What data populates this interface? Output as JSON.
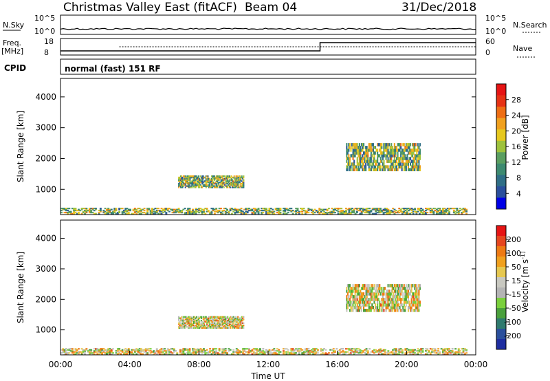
{
  "header": {
    "title": "Christmas Valley East (fitACF)",
    "beam": "Beam 04",
    "date": "31/Dec/2018"
  },
  "top_panels": {
    "nsky_label": "N.Sky",
    "nsearch_label": "N.Search",
    "freq_label_line1": "Freq.",
    "freq_label_line2": "[MHz]",
    "nave_label": "Nave",
    "cpid_label": "CPID",
    "cpid_text": "normal (fast) 151 RF",
    "noise_ticks": [
      "10^5",
      "10^0"
    ],
    "freq_ticks": [
      "18",
      "8"
    ],
    "nave_ticks": [
      "60",
      "0"
    ]
  },
  "colors": {
    "power_scale": [
      "#0000e6",
      "#2a4f9c",
      "#2f6e86",
      "#3d8a70",
      "#5a9e60",
      "#9ec23c",
      "#e6c81e",
      "#f0a01e",
      "#ee6e14",
      "#e63214",
      "#e61414"
    ],
    "velocity_scale": [
      "#e61414",
      "#e6461e",
      "#ee7a14",
      "#f0a01e",
      "#e6c850",
      "#c8c8c0",
      "#b4b4b4",
      "#7ad03c",
      "#4aa03c",
      "#2f7a6e",
      "#2a4f9c",
      "#1e2ea0"
    ]
  },
  "chart_data": [
    {
      "type": "heatmap",
      "name": "power",
      "ylabel": "Slant Range [km]",
      "yticks": [
        1000,
        2000,
        3000,
        4000
      ],
      "ylim": [
        180,
        4600
      ],
      "xlim": [
        0,
        24
      ],
      "colorbar_label": "Power [dB]",
      "colorbar_ticks": [
        4,
        8,
        12,
        16,
        20,
        24,
        28
      ],
      "colorbar_range": [
        0,
        32
      ],
      "regions": [
        {
          "x": [
            0,
            23.5
          ],
          "y": [
            200,
            400
          ],
          "value_range": [
            6,
            22
          ]
        },
        {
          "x": [
            6.8,
            10.6
          ],
          "y": [
            1050,
            1450
          ],
          "value_range": [
            8,
            20
          ]
        },
        {
          "x": [
            16.5,
            20.8
          ],
          "y": [
            1600,
            2500
          ],
          "value_range": [
            8,
            22
          ]
        }
      ]
    },
    {
      "type": "heatmap",
      "name": "velocity",
      "ylabel": "Slant Range [km]",
      "yticks": [
        1000,
        2000,
        3000,
        4000
      ],
      "ylim": [
        180,
        4600
      ],
      "xlim": [
        0,
        24
      ],
      "xticks": [
        "00:00",
        "04:00",
        "08:00",
        "12:00",
        "16:00",
        "20:00",
        "00:00"
      ],
      "xlabel": "Time UT",
      "colorbar_label": "Velocity [m s^-1]",
      "colorbar_ticks": [
        200,
        100,
        50,
        15,
        -15,
        -50,
        -100,
        -200
      ],
      "regions": [
        {
          "x": [
            0,
            23.5
          ],
          "y": [
            200,
            400
          ],
          "value_range": [
            -100,
            50
          ]
        },
        {
          "x": [
            6.8,
            10.6
          ],
          "y": [
            1050,
            1450
          ],
          "value_range": [
            15,
            60
          ]
        },
        {
          "x": [
            16.5,
            20.8
          ],
          "y": [
            1600,
            2500
          ],
          "value_range": [
            -15,
            15
          ]
        }
      ]
    }
  ]
}
